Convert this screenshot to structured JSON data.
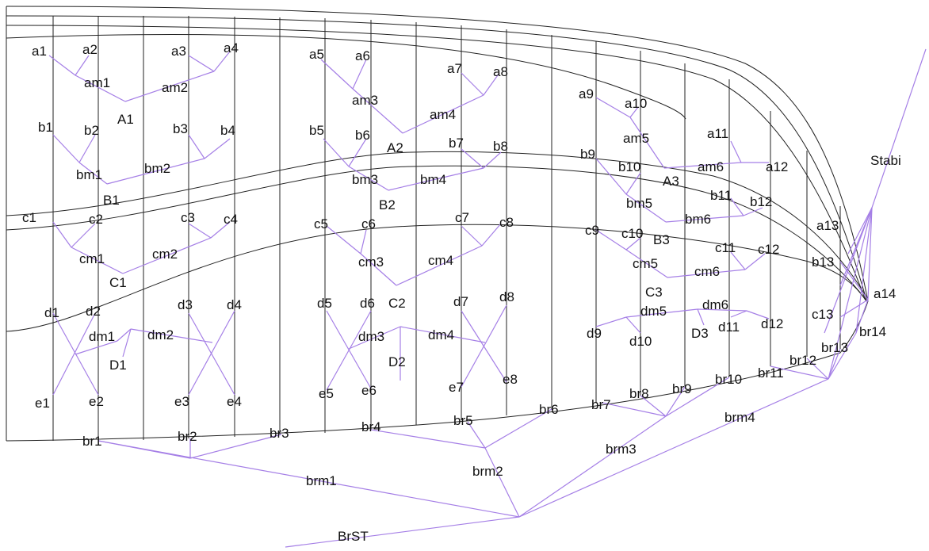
{
  "colors": {
    "structure_line": "#222222",
    "tree_line": "#a57fe6",
    "text": "#111111",
    "background": "#ffffff"
  },
  "labels": {
    "a1": "a1",
    "a2": "a2",
    "a3": "a3",
    "a4": "a4",
    "a5": "a5",
    "a6": "a6",
    "a7": "a7",
    "a8": "a8",
    "a9": "a9",
    "a10": "a10",
    "a11": "a11",
    "a12": "a12",
    "a13": "a13",
    "a14": "a14",
    "am1": "am1",
    "am2": "am2",
    "am3": "am3",
    "am4": "am4",
    "am5": "am5",
    "am6": "am6",
    "A1": "A1",
    "A2": "A2",
    "A3": "A3",
    "b1": "b1",
    "b2": "b2",
    "b3": "b3",
    "b4": "b4",
    "b5": "b5",
    "b6": "b6",
    "b7": "b7",
    "b8": "b8",
    "b9": "b9",
    "b10": "b10",
    "b11": "b11",
    "b12": "b12",
    "b13": "b13",
    "bm1": "bm1",
    "bm2": "bm2",
    "bm3": "bm3",
    "bm4": "bm4",
    "bm5": "bm5",
    "bm6": "bm6",
    "B1": "B1",
    "B2": "B2",
    "B3": "B3",
    "c1": "c1",
    "c2": "c2",
    "c3": "c3",
    "c4": "c4",
    "c5": "c5",
    "c6": "c6",
    "c7": "c7",
    "c8": "c8",
    "c9": "c9",
    "c10": "c10",
    "c11": "c11",
    "c12": "c12",
    "c13": "c13",
    "cm1": "cm1",
    "cm2": "cm2",
    "cm3": "cm3",
    "cm4": "cm4",
    "cm5": "cm5",
    "cm6": "cm6",
    "C1": "C1",
    "C2": "C2",
    "C3": "C3",
    "d1": "d1",
    "d2": "d2",
    "d3": "d3",
    "d4": "d4",
    "d5": "d5",
    "d6": "d6",
    "d7": "d7",
    "d8": "d8",
    "d9": "d9",
    "d10": "d10",
    "d11": "d11",
    "d12": "d12",
    "dm1": "dm1",
    "dm2": "dm2",
    "dm3": "dm3",
    "dm4": "dm4",
    "dm5": "dm5",
    "dm6": "dm6",
    "D1": "D1",
    "D2": "D2",
    "D3": "D3",
    "e1": "e1",
    "e2": "e2",
    "e3": "e3",
    "e4": "e4",
    "e5": "e5",
    "e6": "e6",
    "e7": "e7",
    "e8": "e8",
    "br1": "br1",
    "br2": "br2",
    "br3": "br3",
    "br4": "br4",
    "br5": "br5",
    "br6": "br6",
    "br7": "br7",
    "br8": "br8",
    "br9": "br9",
    "br10": "br10",
    "br11": "br11",
    "br12": "br12",
    "br13": "br13",
    "br14": "br14",
    "brm1": "brm1",
    "brm2": "brm2",
    "brm3": "brm3",
    "brm4": "brm4",
    "BrST": "BrST",
    "Stabi": "Stabi"
  }
}
